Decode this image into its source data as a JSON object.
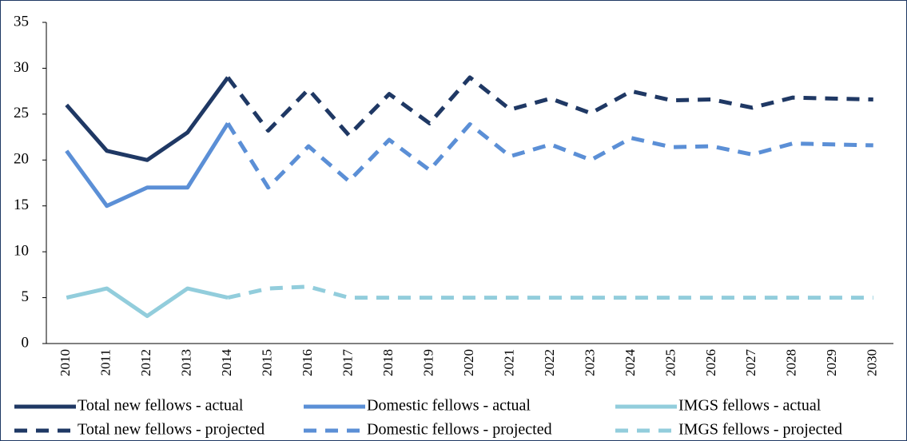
{
  "chart_data": {
    "type": "line",
    "categories": [
      "2010",
      "2011",
      "2012",
      "2013",
      "2014",
      "2015",
      "2016",
      "2017",
      "2018",
      "2019",
      "2020",
      "2021",
      "2022",
      "2023",
      "2024",
      "2025",
      "2026",
      "2027",
      "2028",
      "2029",
      "2030"
    ],
    "series": [
      {
        "name": "Total new fellows - actual",
        "color": "#1f3864",
        "dashed": false,
        "values": [
          26,
          21,
          20,
          23,
          29,
          null,
          null,
          null,
          null,
          null,
          null,
          null,
          null,
          null,
          null,
          null,
          null,
          null,
          null,
          null,
          null
        ]
      },
      {
        "name": "Domestic fellows - actual",
        "color": "#5b8fd6",
        "dashed": false,
        "values": [
          21,
          15,
          17,
          17,
          24,
          null,
          null,
          null,
          null,
          null,
          null,
          null,
          null,
          null,
          null,
          null,
          null,
          null,
          null,
          null,
          null
        ]
      },
      {
        "name": "IMGS fellows - actual",
        "color": "#92cddc",
        "dashed": false,
        "values": [
          5,
          6,
          3,
          6,
          5,
          null,
          null,
          null,
          null,
          null,
          null,
          null,
          null,
          null,
          null,
          null,
          null,
          null,
          null,
          null,
          null
        ]
      },
      {
        "name": "Total new fellows - projected",
        "color": "#1f3864",
        "dashed": true,
        "values": [
          null,
          null,
          null,
          null,
          29,
          23.2,
          27.7,
          22.7,
          27.2,
          24,
          29,
          25.5,
          26.7,
          25.1,
          27.5,
          26.5,
          26.6,
          25.7,
          26.8,
          26.7,
          26.6
        ]
      },
      {
        "name": "Domestic fellows - projected",
        "color": "#5b8fd6",
        "dashed": true,
        "values": [
          null,
          null,
          null,
          null,
          24,
          17,
          21.5,
          17.7,
          22.2,
          18.9,
          23.9,
          20.4,
          21.7,
          20,
          22.4,
          21.4,
          21.5,
          20.6,
          21.8,
          21.7,
          21.6
        ]
      },
      {
        "name": "IMGS fellows - projected",
        "color": "#92cddc",
        "dashed": true,
        "values": [
          null,
          null,
          null,
          null,
          5,
          6,
          6.2,
          5,
          5,
          5,
          5,
          5,
          5,
          5,
          5,
          5,
          5,
          5,
          5,
          5,
          5
        ]
      }
    ],
    "ylim": [
      0,
      35
    ],
    "yticks": [
      0,
      5,
      10,
      15,
      20,
      25,
      30,
      35
    ],
    "grid": false,
    "legend": "bottom"
  }
}
